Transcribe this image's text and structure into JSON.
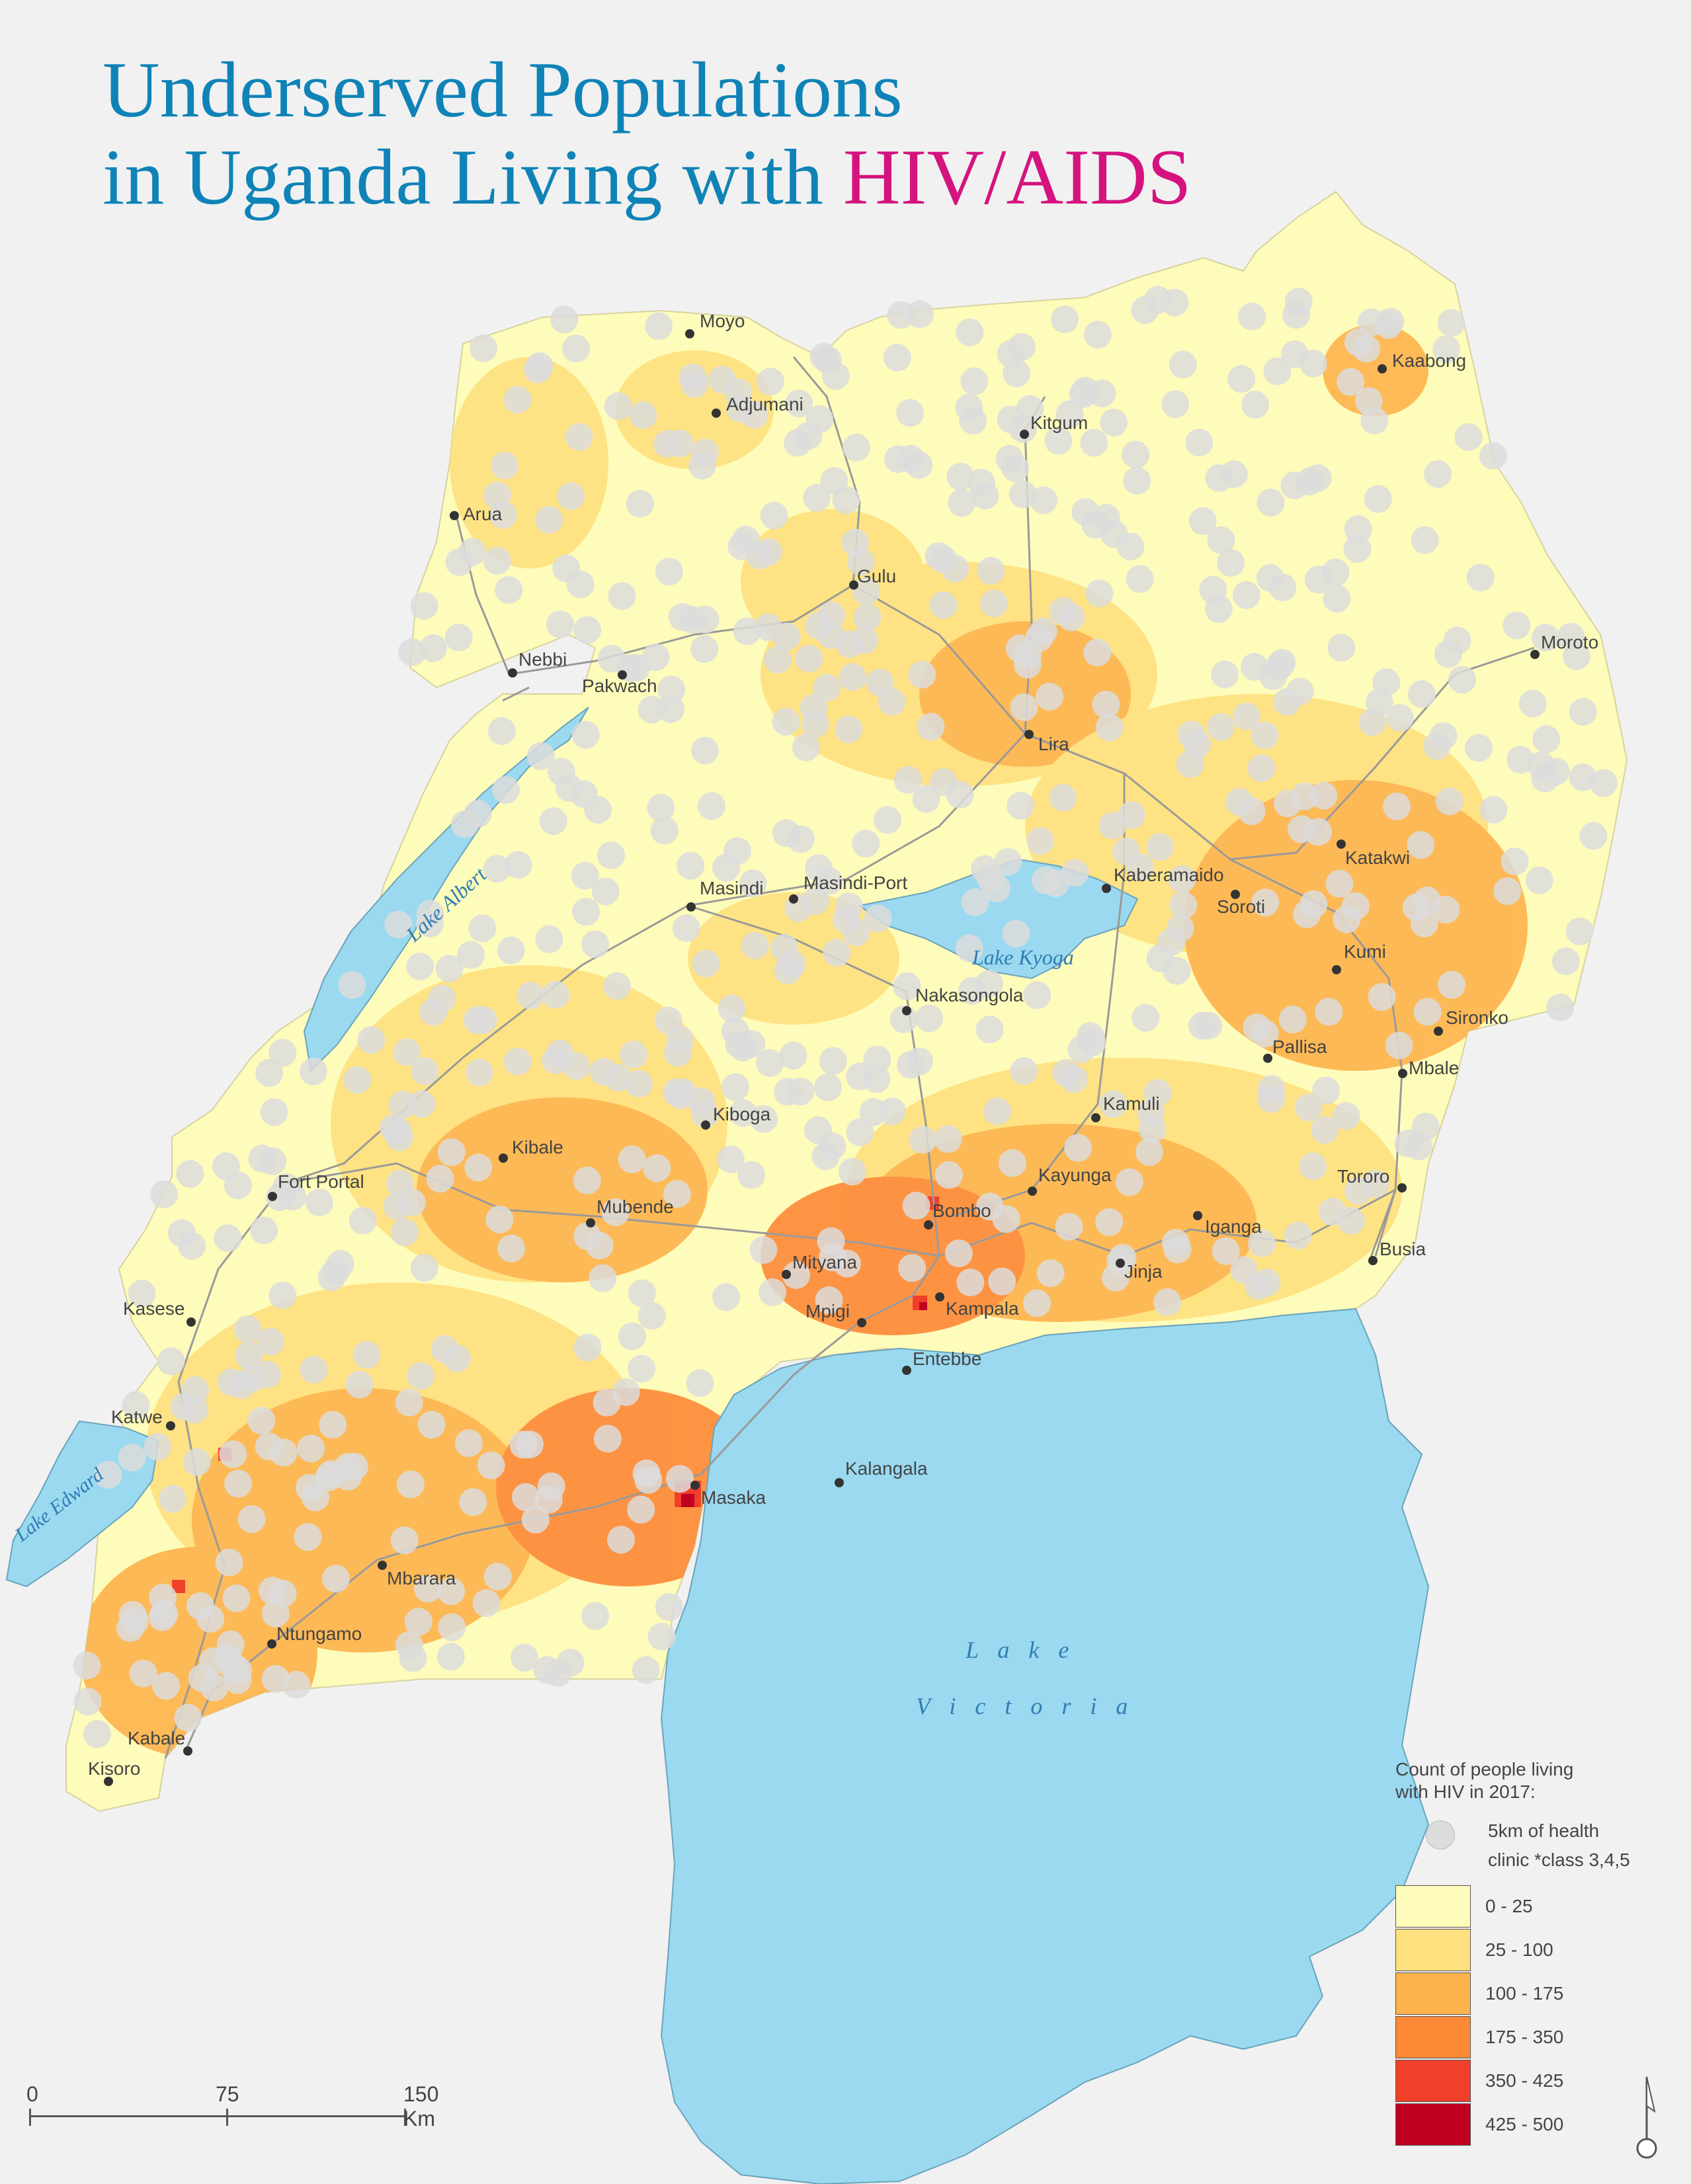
{
  "title": {
    "line1": "Underserved Populations",
    "line2_prefix": "in Uganda Living with ",
    "line2_highlight": "HIV/AIDS"
  },
  "colors": {
    "background": "#f1f1f1",
    "water": "#9ad9f0",
    "title": "#0f83b7",
    "highlight": "#d4137f",
    "clinic": "#dcdcdc"
  },
  "water_bodies": [
    {
      "name": "Lake Albert"
    },
    {
      "name": "Lake Kyoga"
    },
    {
      "name": "Lake Edward"
    },
    {
      "name": "L a k e"
    },
    {
      "name": "V i c t o r i a"
    }
  ],
  "cities": [
    "Moyo",
    "Adjumani",
    "Kaabong",
    "Kitgum",
    "Arua",
    "Gulu",
    "Moroto",
    "Nebbi",
    "Pakwach",
    "Lira",
    "Katakwi",
    "Masindi",
    "Masindi-Port",
    "Kaberamaido",
    "Soroti",
    "Kumi",
    "Nakasongola",
    "Sironko",
    "Pallisa",
    "Mbale",
    "Kiboga",
    "Kamuli",
    "Kibale",
    "Fort Portal",
    "Kayunga",
    "Tororo",
    "Mubende",
    "Bombo",
    "Iganga",
    "Busia",
    "Mityana",
    "Jinja",
    "Kasese",
    "Mpigi",
    "Kampala",
    "Entebbe",
    "Katwe",
    "Kalangala",
    "Masaka",
    "Mbarara",
    "Ntungamo",
    "Kabale",
    "Kisoro"
  ],
  "legend": {
    "title_line1": "Count of people living",
    "title_line2": "with HIV in 2017:",
    "clinic_line1": "5km of health",
    "clinic_line2": "clinic *class 3,4,5",
    "classes": [
      {
        "label": "0 - 25",
        "color": "#fefcba"
      },
      {
        "label": "25 - 100",
        "color": "#fee07e"
      },
      {
        "label": "100 - 175",
        "color": "#fdb24c"
      },
      {
        "label": "175 - 350",
        "color": "#fd8836"
      },
      {
        "label": "350 - 425",
        "color": "#f1402a"
      },
      {
        "label": "425 - 500",
        "color": "#c00021"
      }
    ]
  },
  "scale": {
    "labels": [
      "0",
      "75",
      "150  Km"
    ]
  }
}
